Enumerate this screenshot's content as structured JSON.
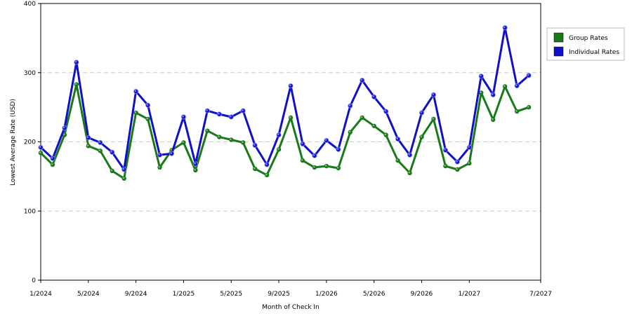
{
  "colors": {
    "group": "#1a7a1a",
    "individual": "#1010c8",
    "grid": "#cccccc",
    "axis": "#000000"
  },
  "chart_data": {
    "type": "line",
    "xlabel": "Month of Check In",
    "ylabel": "Lowest Average Rate (USD)",
    "ylim": [
      0,
      400
    ],
    "yticks": [
      0,
      100,
      200,
      300,
      400
    ],
    "grid": "horizontal dashed",
    "legend_position": "right",
    "xrange": [
      "2024-01",
      "2027-07"
    ],
    "xticks": [
      {
        "month": "2024-01",
        "label": "1/2024"
      },
      {
        "month": "2024-05",
        "label": "5/2024"
      },
      {
        "month": "2024-09",
        "label": "9/2024"
      },
      {
        "month": "2025-01",
        "label": "1/2025"
      },
      {
        "month": "2025-05",
        "label": "5/2025"
      },
      {
        "month": "2025-09",
        "label": "9/2025"
      },
      {
        "month": "2026-01",
        "label": "1/2026"
      },
      {
        "month": "2026-05",
        "label": "5/2026"
      },
      {
        "month": "2026-09",
        "label": "9/2026"
      },
      {
        "month": "2027-01",
        "label": "1/2027"
      },
      {
        "month": "2027-07",
        "label": "7/2027"
      }
    ],
    "series": [
      {
        "name": "Group Rates",
        "color": "#1a7a1a",
        "points": [
          [
            "2024-01",
            184
          ],
          [
            "2024-02",
            167
          ],
          [
            "2024-03",
            210
          ],
          [
            "2024-04",
            283
          ],
          [
            "2024-05",
            194
          ],
          [
            "2024-06",
            187
          ],
          [
            "2024-07",
            158
          ],
          [
            "2024-08",
            147
          ],
          [
            "2024-09",
            242
          ],
          [
            "2024-10",
            233
          ],
          [
            "2024-11",
            163
          ],
          [
            "2024-12",
            188
          ],
          [
            "2025-01",
            199
          ],
          [
            "2025-02",
            159
          ],
          [
            "2025-03",
            216
          ],
          [
            "2025-04",
            207
          ],
          [
            "2025-05",
            203
          ],
          [
            "2025-06",
            199
          ],
          [
            "2025-07",
            161
          ],
          [
            "2025-08",
            152
          ],
          [
            "2025-09",
            189
          ],
          [
            "2025-10",
            235
          ],
          [
            "2025-11",
            173
          ],
          [
            "2025-12",
            163
          ],
          [
            "2026-01",
            165
          ],
          [
            "2026-02",
            162
          ],
          [
            "2026-03",
            214
          ],
          [
            "2026-04",
            235
          ],
          [
            "2026-05",
            223
          ],
          [
            "2026-06",
            210
          ],
          [
            "2026-07",
            173
          ],
          [
            "2026-08",
            155
          ],
          [
            "2026-09",
            207
          ],
          [
            "2026-10",
            233
          ],
          [
            "2026-11",
            165
          ],
          [
            "2026-12",
            160
          ],
          [
            "2027-01",
            169
          ],
          [
            "2027-02",
            271
          ],
          [
            "2027-03",
            232
          ],
          [
            "2027-04",
            280
          ],
          [
            "2027-05",
            244
          ],
          [
            "2027-06",
            250
          ]
        ]
      },
      {
        "name": "Individual Rates",
        "color": "#1010c8",
        "points": [
          [
            "2024-01",
            192
          ],
          [
            "2024-02",
            176
          ],
          [
            "2024-03",
            220
          ],
          [
            "2024-04",
            315
          ],
          [
            "2024-05",
            206
          ],
          [
            "2024-06",
            199
          ],
          [
            "2024-07",
            185
          ],
          [
            "2024-08",
            160
          ],
          [
            "2024-09",
            273
          ],
          [
            "2024-10",
            253
          ],
          [
            "2024-11",
            181
          ],
          [
            "2024-12",
            183
          ],
          [
            "2025-01",
            236
          ],
          [
            "2025-02",
            168
          ],
          [
            "2025-03",
            245
          ],
          [
            "2025-04",
            240
          ],
          [
            "2025-05",
            236
          ],
          [
            "2025-06",
            245
          ],
          [
            "2025-07",
            195
          ],
          [
            "2025-08",
            167
          ],
          [
            "2025-09",
            210
          ],
          [
            "2025-10",
            281
          ],
          [
            "2025-11",
            197
          ],
          [
            "2025-12",
            180
          ],
          [
            "2026-01",
            202
          ],
          [
            "2026-02",
            189
          ],
          [
            "2026-03",
            252
          ],
          [
            "2026-04",
            289
          ],
          [
            "2026-05",
            265
          ],
          [
            "2026-06",
            244
          ],
          [
            "2026-07",
            204
          ],
          [
            "2026-08",
            181
          ],
          [
            "2026-09",
            242
          ],
          [
            "2026-10",
            268
          ],
          [
            "2026-11",
            188
          ],
          [
            "2026-12",
            171
          ],
          [
            "2027-01",
            192
          ],
          [
            "2027-02",
            295
          ],
          [
            "2027-03",
            268
          ],
          [
            "2027-04",
            365
          ],
          [
            "2027-05",
            281
          ],
          [
            "2027-06",
            296
          ]
        ]
      }
    ]
  }
}
